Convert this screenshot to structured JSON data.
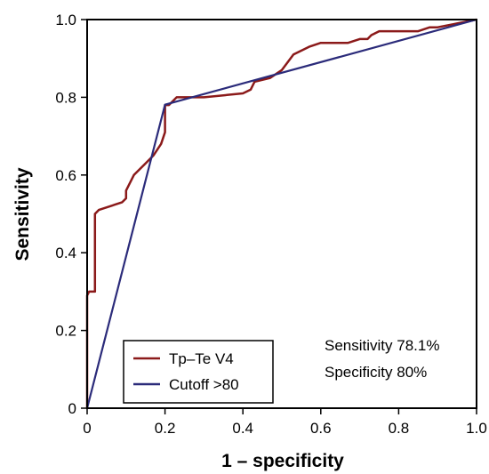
{
  "chart_data": {
    "type": "line",
    "xlabel": "1 – specificity",
    "ylabel": "Sensitivity",
    "xlim": [
      0,
      1
    ],
    "ylim": [
      0,
      1
    ],
    "x_ticks": [
      "0",
      "0.2",
      "0.4",
      "0.6",
      "0.8",
      "1.0"
    ],
    "y_ticks": [
      "0",
      "0.2",
      "0.4",
      "0.6",
      "0.8",
      "1.0"
    ],
    "grid": false,
    "legend_position": "bottom-left",
    "annotations": [
      "Sensitivity 78.1%",
      "Specificity 80%"
    ],
    "series": [
      {
        "name": "Tp–Te V4",
        "color": "#8b1a1a",
        "x": [
          0,
          0,
          0.005,
          0.02,
          0.02,
          0.03,
          0.09,
          0.1,
          0.1,
          0.12,
          0.15,
          0.17,
          0.19,
          0.2,
          0.2,
          0.21,
          0.23,
          0.3,
          0.4,
          0.42,
          0.43,
          0.47,
          0.5,
          0.53,
          0.57,
          0.6,
          0.67,
          0.7,
          0.72,
          0.73,
          0.75,
          0.8,
          0.85,
          0.88,
          0.9,
          0.95,
          1.0
        ],
        "y": [
          0,
          0.29,
          0.3,
          0.3,
          0.5,
          0.51,
          0.53,
          0.54,
          0.56,
          0.6,
          0.63,
          0.65,
          0.68,
          0.71,
          0.78,
          0.78,
          0.8,
          0.8,
          0.81,
          0.82,
          0.84,
          0.85,
          0.87,
          0.91,
          0.93,
          0.94,
          0.94,
          0.95,
          0.95,
          0.96,
          0.97,
          0.97,
          0.97,
          0.98,
          0.98,
          0.99,
          1.0
        ]
      },
      {
        "name": "Cutoff >80",
        "color": "#2b2b7a",
        "x": [
          0,
          0.2,
          1.0
        ],
        "y": [
          0,
          0.781,
          1.0
        ]
      }
    ]
  }
}
